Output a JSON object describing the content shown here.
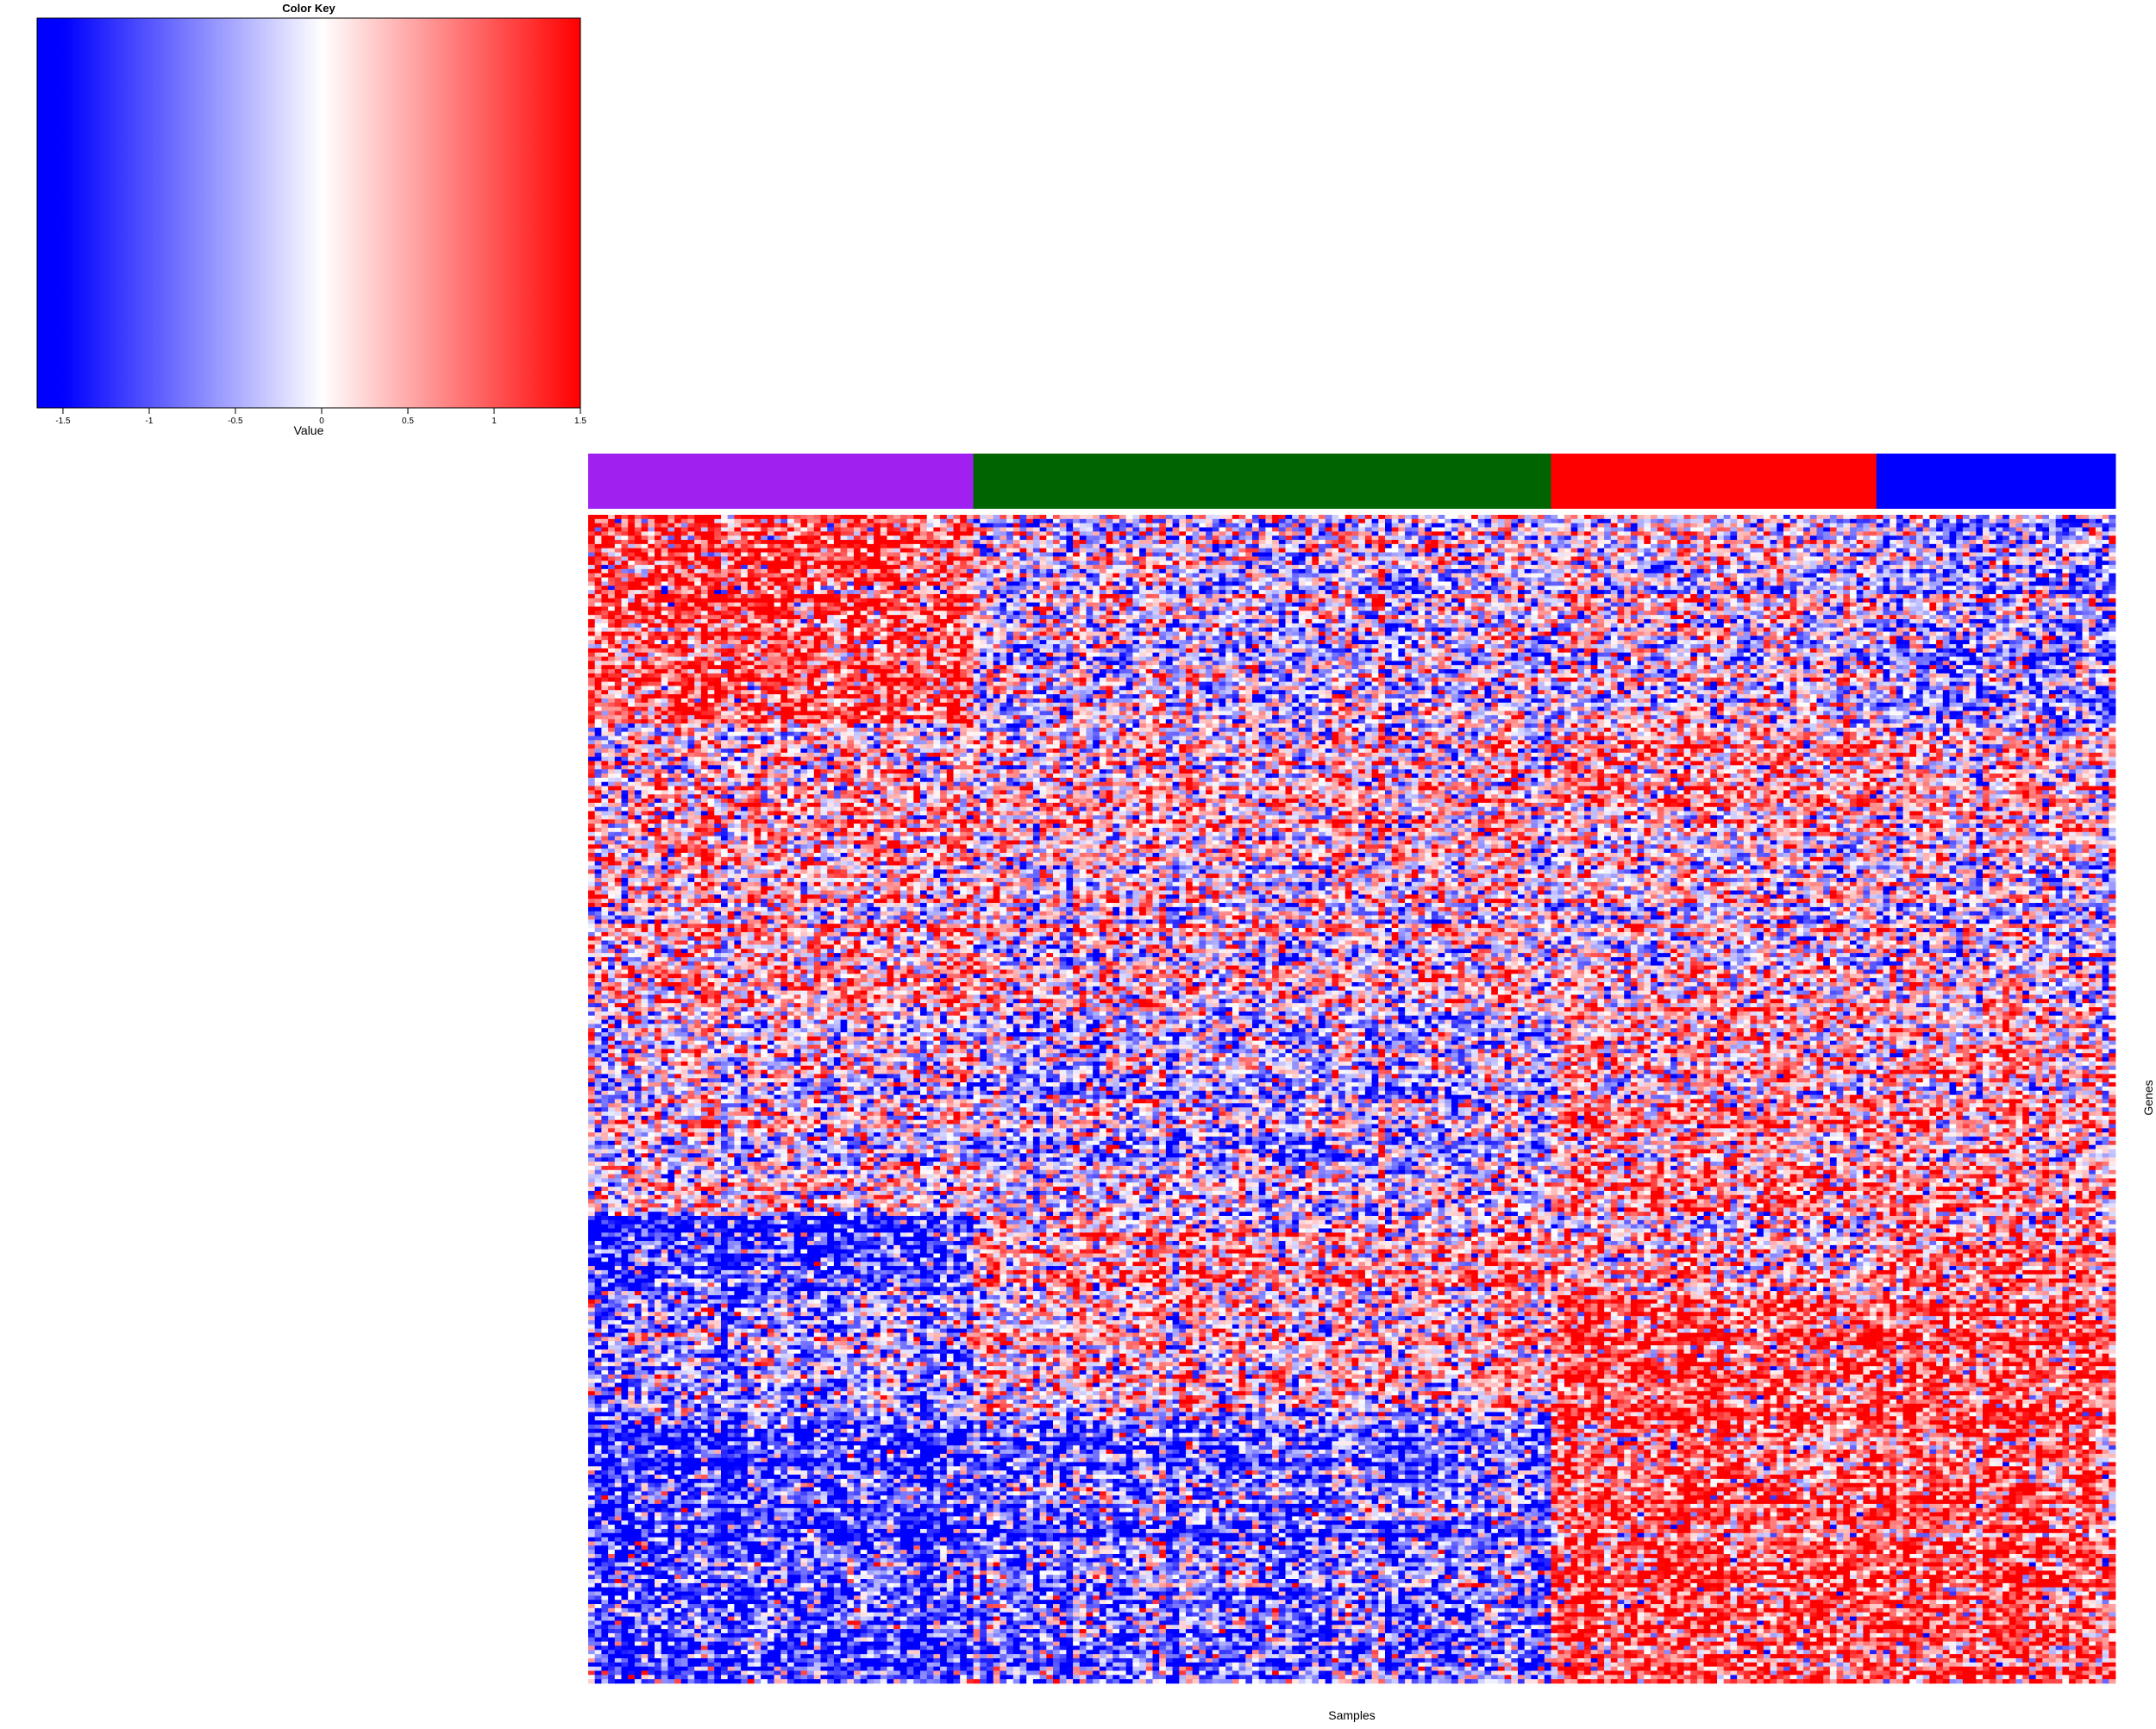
{
  "chart_data": [
    {
      "type": "colorbar",
      "title": "Color Key",
      "xlabel": "Value",
      "range": [
        -1.65,
        1.5
      ],
      "ticks": [
        -1.5,
        -1,
        -0.5,
        0,
        0.5,
        1,
        1.5
      ],
      "tick_labels": [
        "-1.5",
        "-1",
        "-0.5",
        "0",
        "0.5",
        "1",
        "1.5"
      ],
      "colors": {
        "low": "#0000ff",
        "mid": "#ffffff",
        "high": "#ff0000"
      }
    },
    {
      "type": "heatmap",
      "xlabel": "Samples",
      "ylabel": "Genes",
      "value_range": [
        -1.5,
        1.5
      ],
      "colors": {
        "low": "#0000ff",
        "mid": "#ffffff",
        "high": "#ff0000"
      },
      "n_samples": 230,
      "n_genes": 280,
      "sample_groups": [
        {
          "color": "#a020f0",
          "n_samples": 58
        },
        {
          "color": "#006400",
          "n_samples": 87
        },
        {
          "color": "#ff0000",
          "n_samples": 49
        },
        {
          "color": "#0000ff",
          "n_samples": 36
        }
      ],
      "gene_blocks": [
        {
          "n_genes": 50,
          "means": [
            1.0,
            -0.2,
            -0.1,
            -0.5
          ]
        },
        {
          "n_genes": 20,
          "means": [
            0.1,
            0.0,
            0.5,
            0.1
          ]
        },
        {
          "n_genes": 48,
          "means": [
            0.3,
            0.0,
            0.0,
            -0.1
          ]
        },
        {
          "n_genes": 50,
          "means": [
            0.0,
            -0.3,
            0.5,
            0.4
          ]
        },
        {
          "n_genes": 18,
          "means": [
            -1.3,
            0.4,
            0.3,
            0.7
          ]
        },
        {
          "n_genes": 28,
          "means": [
            -0.6,
            0.1,
            0.9,
            0.9
          ]
        },
        {
          "n_genes": 66,
          "means": [
            -1.1,
            -0.8,
            1.0,
            1.0
          ]
        }
      ]
    }
  ]
}
